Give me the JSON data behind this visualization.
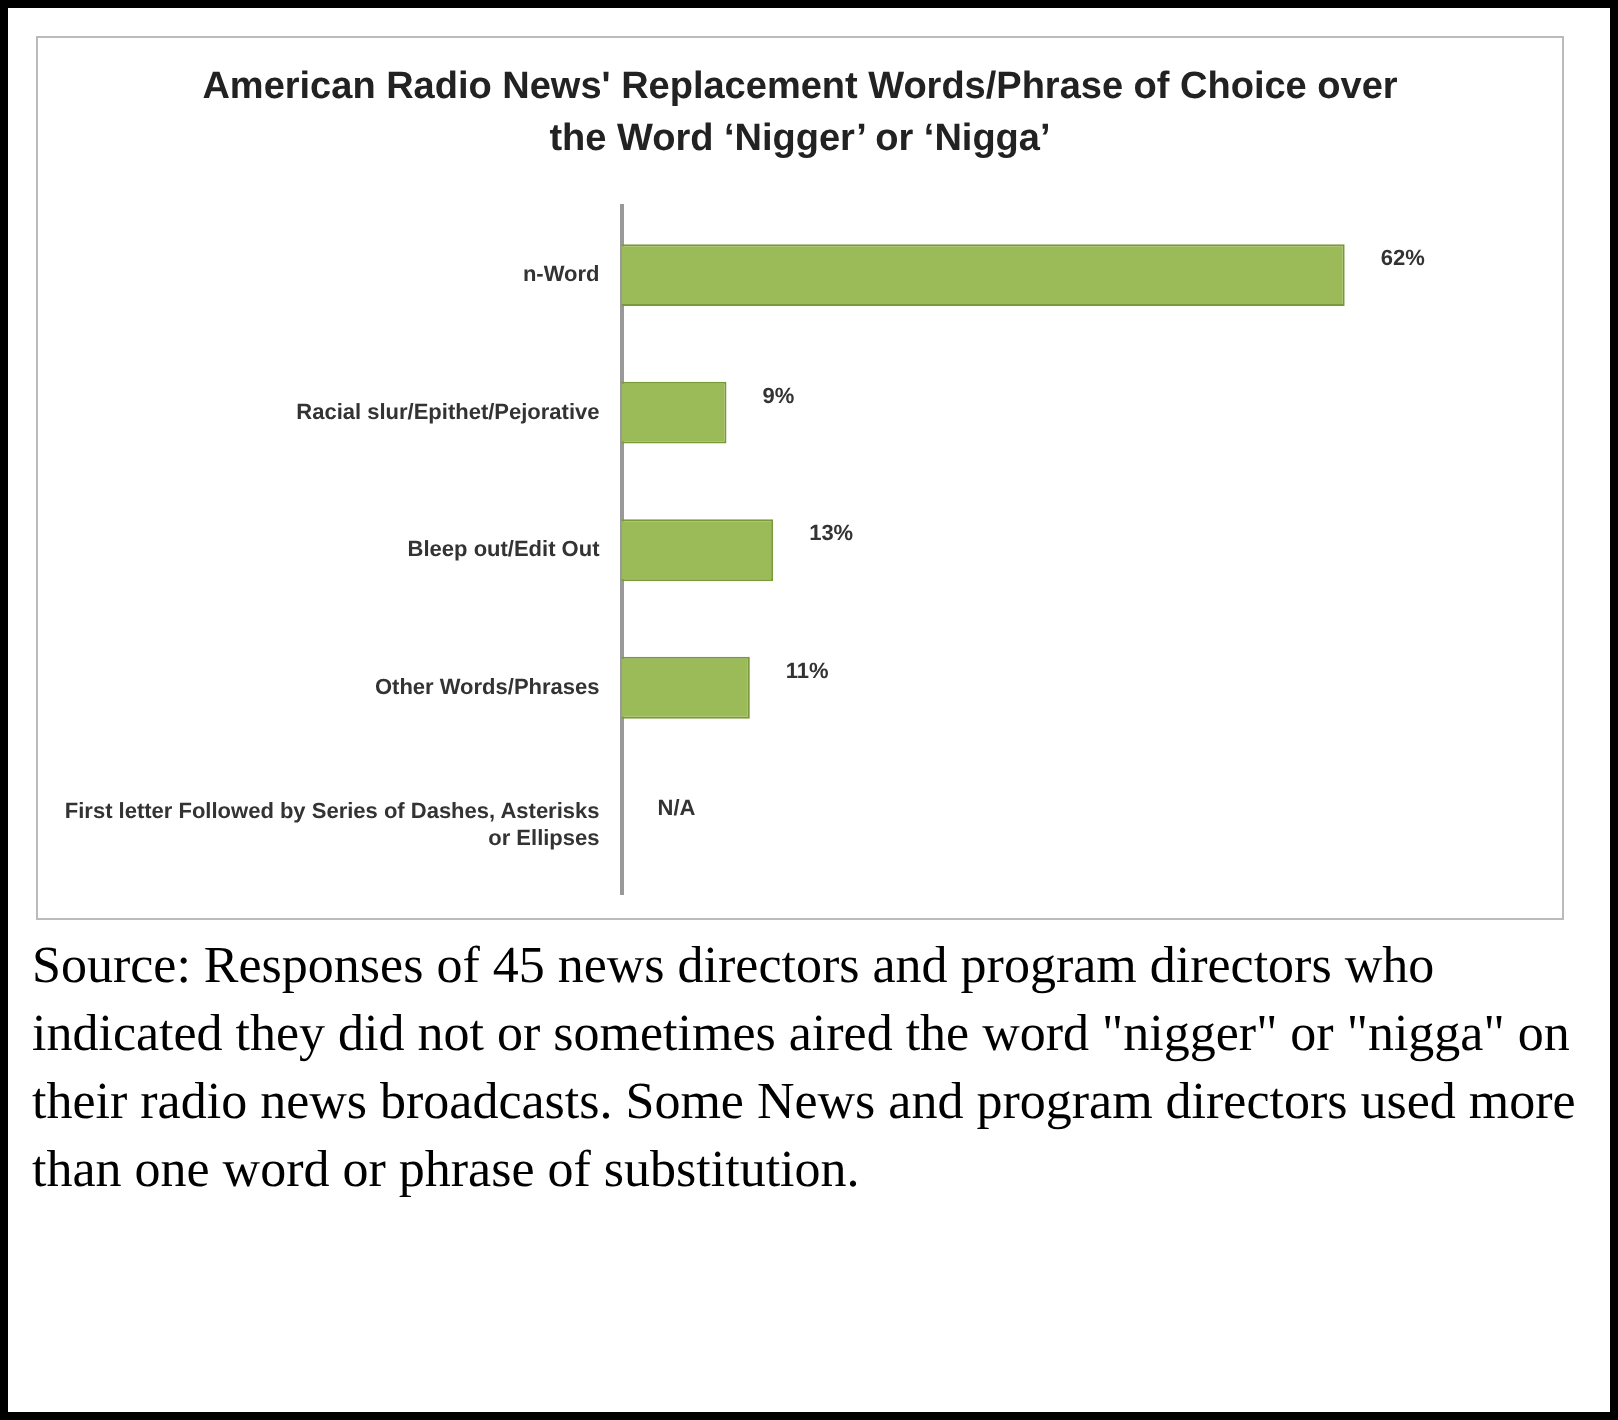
{
  "chart_data": {
    "type": "bar",
    "orientation": "horizontal",
    "title": "American Radio News' Replacement Words/Phrase of Choice over the Word ‘Nigger’ or ‘Nigga’",
    "categories": [
      "n-Word",
      "Racial slur/Epithet/Pejorative",
      "Bleep out/Edit Out",
      "Other Words/Phrases",
      "First letter Followed by Series of Dashes, Asterisks or Ellipses"
    ],
    "values": [
      62,
      9,
      13,
      11,
      null
    ],
    "color": "#9bbb59",
    "value_labels": [
      "62%",
      "9%",
      "13%",
      "11%",
      "N/A"
    ],
    "tick_labels": "y",
    "legend": false,
    "annotations": [
      "Source: Responses of 45 news directors and program directors who indicated they did not or sometimes aired the word \"nigger\" or \"nigga\" on their radio news broadcasts. Some News and program directors used more than one word or phrase of substitution."
    ]
  }
}
